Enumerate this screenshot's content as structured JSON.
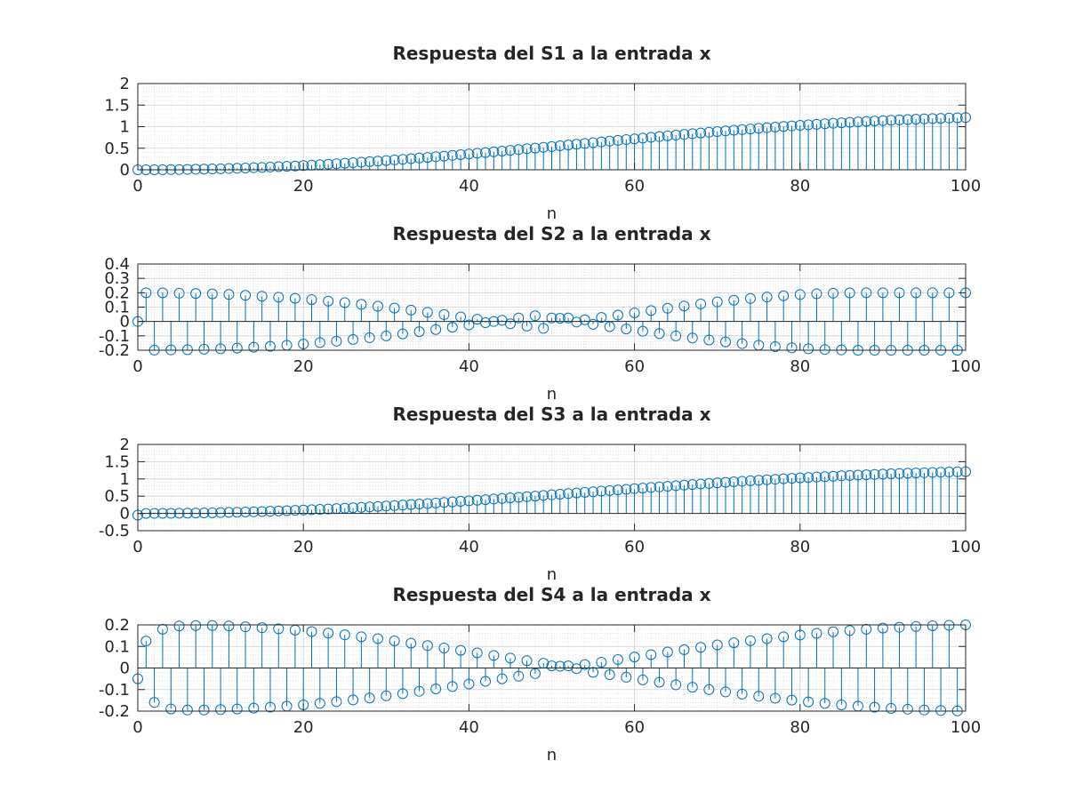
{
  "chart_data": [
    {
      "type": "stem",
      "title": "Respuesta del S1 a la entrada x",
      "xlabel": "n",
      "ylabel": "",
      "xlim": [
        0,
        100
      ],
      "ylim": [
        0,
        2
      ],
      "xticks": [
        0,
        20,
        40,
        60,
        80,
        100
      ],
      "yticks": [
        0,
        0.5,
        1,
        1.5,
        2
      ],
      "ytick_labels": [
        "0",
        "0.5",
        "1",
        "1.5",
        "2"
      ],
      "grid": true,
      "minor_grid": true,
      "marker": "circle",
      "color": "#0072BD",
      "series": [
        {
          "n_start": 0,
          "n_step": 1,
          "values": [
            0.0,
            0.0,
            0.001,
            0.002,
            0.004,
            0.006,
            0.009,
            0.012,
            0.016,
            0.02,
            0.024,
            0.03,
            0.035,
            0.041,
            0.048,
            0.055,
            0.063,
            0.071,
            0.079,
            0.088,
            0.098,
            0.108,
            0.118,
            0.129,
            0.14,
            0.152,
            0.164,
            0.176,
            0.189,
            0.202,
            0.215,
            0.229,
            0.243,
            0.258,
            0.273,
            0.287,
            0.303,
            0.318,
            0.334,
            0.35,
            0.366,
            0.383,
            0.4,
            0.417,
            0.434,
            0.451,
            0.468,
            0.486,
            0.503,
            0.521,
            0.539,
            0.557,
            0.575,
            0.593,
            0.61,
            0.628,
            0.646,
            0.664,
            0.682,
            0.7,
            0.717,
            0.735,
            0.752,
            0.77,
            0.787,
            0.804,
            0.821,
            0.837,
            0.854,
            0.87,
            0.886,
            0.902,
            0.917,
            0.932,
            0.947,
            0.962,
            0.976,
            0.99,
            1.004,
            1.017,
            1.03,
            1.043,
            1.055,
            1.067,
            1.079,
            1.09,
            1.101,
            1.111,
            1.121,
            1.131,
            1.14,
            1.149,
            1.157,
            1.165,
            1.173,
            1.18,
            1.187,
            1.194,
            1.2,
            1.206,
            1.212
          ]
        }
      ]
    },
    {
      "type": "stem",
      "title": "Respuesta del S2 a la entrada x",
      "xlabel": "n",
      "ylabel": "",
      "xlim": [
        0,
        100
      ],
      "ylim": [
        -0.2,
        0.4
      ],
      "xticks": [
        0,
        20,
        40,
        60,
        80,
        100
      ],
      "yticks": [
        -0.2,
        -0.1,
        0,
        0.1,
        0.2,
        0.3,
        0.4
      ],
      "ytick_labels": [
        "-0.2",
        "-0.1",
        "0",
        "0.1",
        "0.2",
        "0.3",
        "0.4"
      ],
      "grid": true,
      "minor_grid": true,
      "marker": "circle",
      "color": "#0072BD",
      "series": [
        {
          "n_start": 0,
          "n_step": 1,
          "values": [
            0.0,
            0.2,
            -0.199,
            0.199,
            -0.198,
            0.197,
            -0.196,
            0.195,
            -0.193,
            0.192,
            -0.19,
            0.188,
            -0.185,
            0.182,
            -0.179,
            0.176,
            -0.173,
            0.169,
            -0.165,
            0.161,
            -0.157,
            0.152,
            -0.147,
            0.142,
            -0.137,
            0.131,
            -0.125,
            0.119,
            -0.113,
            0.106,
            -0.1,
            0.093,
            -0.086,
            0.079,
            -0.071,
            0.064,
            -0.056,
            0.048,
            -0.04,
            0.032,
            -0.024,
            0.016,
            -0.008,
            0.0,
            0.008,
            -0.016,
            0.024,
            -0.032,
            0.04,
            -0.048,
            0.024,
            0.022,
            0.024,
            -0.004,
            0.012,
            -0.02,
            0.028,
            -0.036,
            0.044,
            -0.052,
            0.06,
            -0.068,
            0.076,
            -0.084,
            0.092,
            -0.1,
            0.108,
            -0.115,
            0.122,
            -0.129,
            0.136,
            -0.142,
            0.148,
            -0.154,
            0.16,
            -0.165,
            0.17,
            -0.175,
            0.179,
            -0.183,
            0.187,
            -0.19,
            0.193,
            -0.195,
            0.197,
            -0.198,
            0.199,
            -0.2,
            0.2,
            -0.2,
            0.2,
            -0.2,
            0.2,
            -0.2,
            0.2,
            -0.2,
            0.2,
            -0.2,
            0.2,
            -0.2,
            0.2
          ]
        }
      ]
    },
    {
      "type": "stem",
      "title": "Respuesta del S3 a la entrada x",
      "xlabel": "n",
      "ylabel": "",
      "xlim": [
        0,
        100
      ],
      "ylim": [
        -0.5,
        2
      ],
      "xticks": [
        0,
        20,
        40,
        60,
        80,
        100
      ],
      "yticks": [
        -0.5,
        0,
        0.5,
        1,
        1.5,
        2
      ],
      "ytick_labels": [
        "-0.5",
        "0",
        "0.5",
        "1",
        "1.5",
        "2"
      ],
      "grid": true,
      "minor_grid": true,
      "marker": "circle",
      "color": "#0072BD",
      "series": [
        {
          "n_start": 0,
          "n_step": 1,
          "values": [
            -0.05,
            0.0,
            0.001,
            0.002,
            0.004,
            0.006,
            0.009,
            0.012,
            0.016,
            0.02,
            0.024,
            0.03,
            0.035,
            0.041,
            0.048,
            0.055,
            0.063,
            0.071,
            0.079,
            0.088,
            0.098,
            0.108,
            0.118,
            0.129,
            0.14,
            0.152,
            0.164,
            0.176,
            0.189,
            0.202,
            0.215,
            0.229,
            0.243,
            0.258,
            0.273,
            0.287,
            0.303,
            0.318,
            0.334,
            0.35,
            0.366,
            0.383,
            0.4,
            0.417,
            0.434,
            0.451,
            0.468,
            0.486,
            0.503,
            0.521,
            0.539,
            0.557,
            0.575,
            0.593,
            0.61,
            0.628,
            0.646,
            0.664,
            0.682,
            0.7,
            0.717,
            0.735,
            0.752,
            0.77,
            0.787,
            0.804,
            0.821,
            0.837,
            0.854,
            0.87,
            0.886,
            0.902,
            0.917,
            0.932,
            0.947,
            0.962,
            0.976,
            0.99,
            1.004,
            1.017,
            1.03,
            1.043,
            1.055,
            1.067,
            1.079,
            1.09,
            1.101,
            1.111,
            1.121,
            1.131,
            1.14,
            1.149,
            1.157,
            1.165,
            1.173,
            1.18,
            1.187,
            1.194,
            1.2,
            1.206,
            1.212
          ]
        }
      ]
    },
    {
      "type": "stem",
      "title": "Respuesta del S4 a la entrada x",
      "xlabel": "n",
      "ylabel": "",
      "xlim": [
        0,
        100
      ],
      "ylim": [
        -0.2,
        0.2
      ],
      "xticks": [
        0,
        20,
        40,
        60,
        80,
        100
      ],
      "yticks": [
        -0.2,
        -0.1,
        0,
        0.1,
        0.2
      ],
      "ytick_labels": [
        "-0.2",
        "-0.1",
        "0",
        "0.1",
        "0.2"
      ],
      "grid": true,
      "minor_grid": true,
      "marker": "circle",
      "color": "#0072BD",
      "series": [
        {
          "n_start": 0,
          "n_step": 1,
          "values": [
            -0.05,
            0.125,
            -0.16,
            0.18,
            -0.19,
            0.195,
            -0.195,
            0.197,
            -0.195,
            0.197,
            -0.193,
            0.195,
            -0.19,
            0.191,
            -0.186,
            0.187,
            -0.182,
            0.182,
            -0.177,
            0.176,
            -0.171,
            0.169,
            -0.164,
            0.162,
            -0.156,
            0.154,
            -0.148,
            0.145,
            -0.139,
            0.136,
            -0.129,
            0.126,
            -0.119,
            0.115,
            -0.108,
            0.104,
            -0.097,
            0.093,
            -0.086,
            0.082,
            -0.074,
            0.07,
            -0.062,
            0.058,
            -0.05,
            0.046,
            -0.038,
            0.034,
            -0.026,
            0.022,
            0.01,
            0.008,
            0.01,
            -0.003,
            0.016,
            -0.02,
            0.027,
            -0.031,
            0.039,
            -0.043,
            0.051,
            -0.055,
            0.062,
            -0.066,
            0.074,
            -0.078,
            0.085,
            -0.089,
            0.096,
            -0.1,
            0.107,
            -0.111,
            0.117,
            -0.121,
            0.127,
            -0.131,
            0.136,
            -0.14,
            0.145,
            -0.149,
            0.153,
            -0.157,
            0.161,
            -0.164,
            0.168,
            -0.171,
            0.174,
            -0.177,
            0.18,
            -0.182,
            0.185,
            -0.187,
            0.189,
            -0.191,
            0.193,
            -0.195,
            0.196,
            -0.197,
            0.198,
            -0.199,
            0.2
          ]
        }
      ]
    }
  ]
}
